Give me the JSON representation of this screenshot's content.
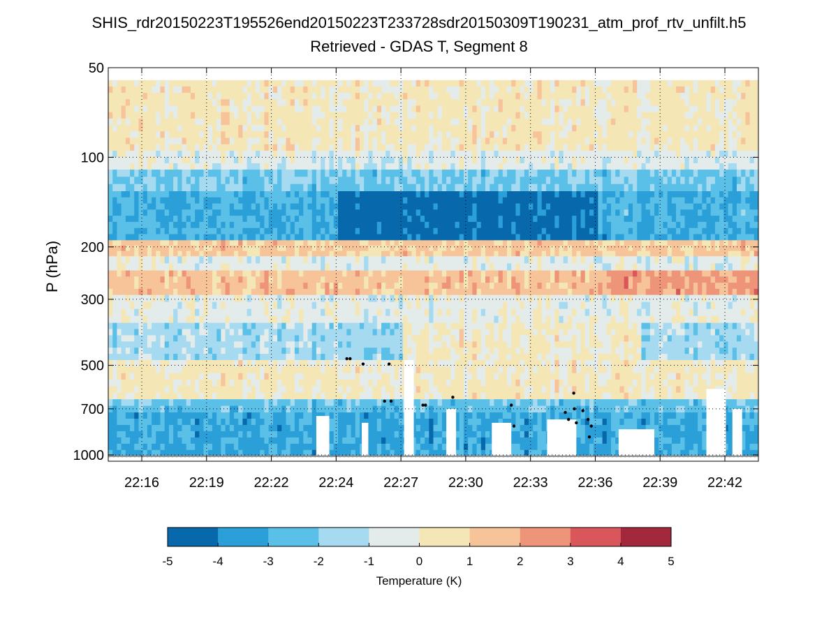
{
  "chart_data": {
    "type": "heatmap",
    "title": "SHIS_rdr20150223T195526end20150223T233728sdr20150309T190231_atm_prof_rtv_unfilt.h5",
    "subtitle": "Retrieved - GDAS T, Segment 8",
    "ylabel": "P (hPa)",
    "y_scale": "log",
    "y_reversed": true,
    "ylim": [
      50,
      1050
    ],
    "y_ticks": [
      50,
      100,
      200,
      300,
      500,
      700,
      1000
    ],
    "y_tick_labels": [
      "50",
      "100",
      "200",
      "300",
      "500",
      "700",
      "1000"
    ],
    "xlim_minutes": [
      22.25,
      22.745
    ],
    "x_ticks": [
      "22:16",
      "22:19",
      "22:22",
      "22:24",
      "22:27",
      "22:30",
      "22:33",
      "22:36",
      "22:39",
      "22:42"
    ],
    "grid": true,
    "data_top_hPa": 55,
    "bands": [
      {
        "p_top": 55,
        "p_bottom": 95,
        "value": 0.3
      },
      {
        "p_top": 95,
        "p_bottom": 110,
        "value": -0.6
      },
      {
        "p_top": 110,
        "p_bottom": 130,
        "value": -2.2
      },
      {
        "p_top": 130,
        "p_bottom": 190,
        "value": -3.6
      },
      {
        "p_top": 190,
        "p_bottom": 215,
        "value": 1.2
      },
      {
        "p_top": 215,
        "p_bottom": 240,
        "value": -0.5
      },
      {
        "p_top": 240,
        "p_bottom": 290,
        "value": 1.4
      },
      {
        "p_top": 290,
        "p_bottom": 360,
        "value": -0.4
      },
      {
        "p_top": 360,
        "p_bottom": 480,
        "value": -1.5
      },
      {
        "p_top": 480,
        "p_bottom": 650,
        "value": 0.2
      },
      {
        "p_top": 650,
        "p_bottom": 720,
        "value": -2.4
      },
      {
        "p_top": 720,
        "p_bottom": 1010,
        "value": -3.2
      }
    ],
    "colorbar": {
      "label": "Temperature (K)",
      "min": -5,
      "max": 5,
      "ticks": [
        "-5",
        "-4",
        "-3",
        "-2",
        "-1",
        "0",
        "1",
        "2",
        "3",
        "4",
        "5"
      ],
      "colors": [
        "#0868ac",
        "#2b9fd8",
        "#5bc0e8",
        "#a6daf0",
        "#e3ecea",
        "#f5e6b6",
        "#f7c49a",
        "#ee9478",
        "#d9565a",
        "#a3283c"
      ]
    },
    "markers_hPa": [
      {
        "t": 0.367,
        "p": 475
      },
      {
        "t": 0.372,
        "p": 475
      },
      {
        "t": 0.392,
        "p": 495
      },
      {
        "t": 0.425,
        "p": 660
      },
      {
        "t": 0.432,
        "p": 495
      },
      {
        "t": 0.435,
        "p": 660
      },
      {
        "t": 0.484,
        "p": 680
      },
      {
        "t": 0.488,
        "p": 680
      },
      {
        "t": 0.53,
        "p": 640
      },
      {
        "t": 0.62,
        "p": 680
      },
      {
        "t": 0.624,
        "p": 800
      },
      {
        "t": 0.703,
        "p": 720
      },
      {
        "t": 0.708,
        "p": 760
      },
      {
        "t": 0.716,
        "p": 620
      },
      {
        "t": 0.717,
        "p": 700
      },
      {
        "t": 0.72,
        "p": 780
      },
      {
        "t": 0.73,
        "p": 710
      },
      {
        "t": 0.738,
        "p": 760
      },
      {
        "t": 0.74,
        "p": 870
      },
      {
        "t": 0.743,
        "p": 800
      }
    ]
  }
}
